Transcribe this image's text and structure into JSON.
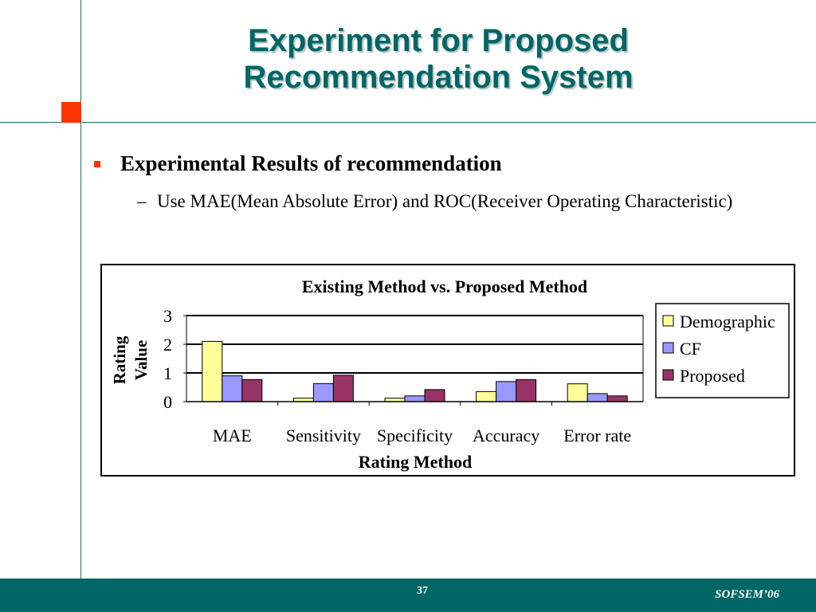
{
  "slide": {
    "title_line1": "Experiment for Proposed",
    "title_line2": "Recommendation System",
    "bullet1": "Experimental Results of recommendation",
    "sub_dash": "–",
    "sub_bullet": "Use MAE(Mean Absolute Error) and ROC(Receiver Operating Characteristic)",
    "page_number": "37",
    "conference": "SOFSEM’06"
  },
  "colors": {
    "accent": "#ff3300",
    "teal": "#006666",
    "demographic": "#ffff99",
    "cf": "#9999ff",
    "proposed": "#993366"
  },
  "chart_data": {
    "type": "bar",
    "title": "Existing Method vs. Proposed Method",
    "xlabel": "Rating Method",
    "ylabel_line1": "Rating",
    "ylabel_line2": "Value",
    "ylim": [
      0,
      3
    ],
    "yticks": [
      "0",
      "1",
      "2",
      "3"
    ],
    "grid": true,
    "legend_position": "right",
    "categories": [
      "MAE",
      "Sensitivity",
      "Specificity",
      "Accuracy",
      "Error rate"
    ],
    "series": [
      {
        "name": "Demographic",
        "color": "#ffff99",
        "values": [
          2.1,
          0.12,
          0.12,
          0.35,
          0.62
        ]
      },
      {
        "name": "CF",
        "color": "#9999ff",
        "values": [
          0.9,
          0.63,
          0.2,
          0.7,
          0.28
        ]
      },
      {
        "name": "Proposed",
        "color": "#993366",
        "values": [
          0.77,
          0.92,
          0.42,
          0.77,
          0.2
        ]
      }
    ]
  }
}
